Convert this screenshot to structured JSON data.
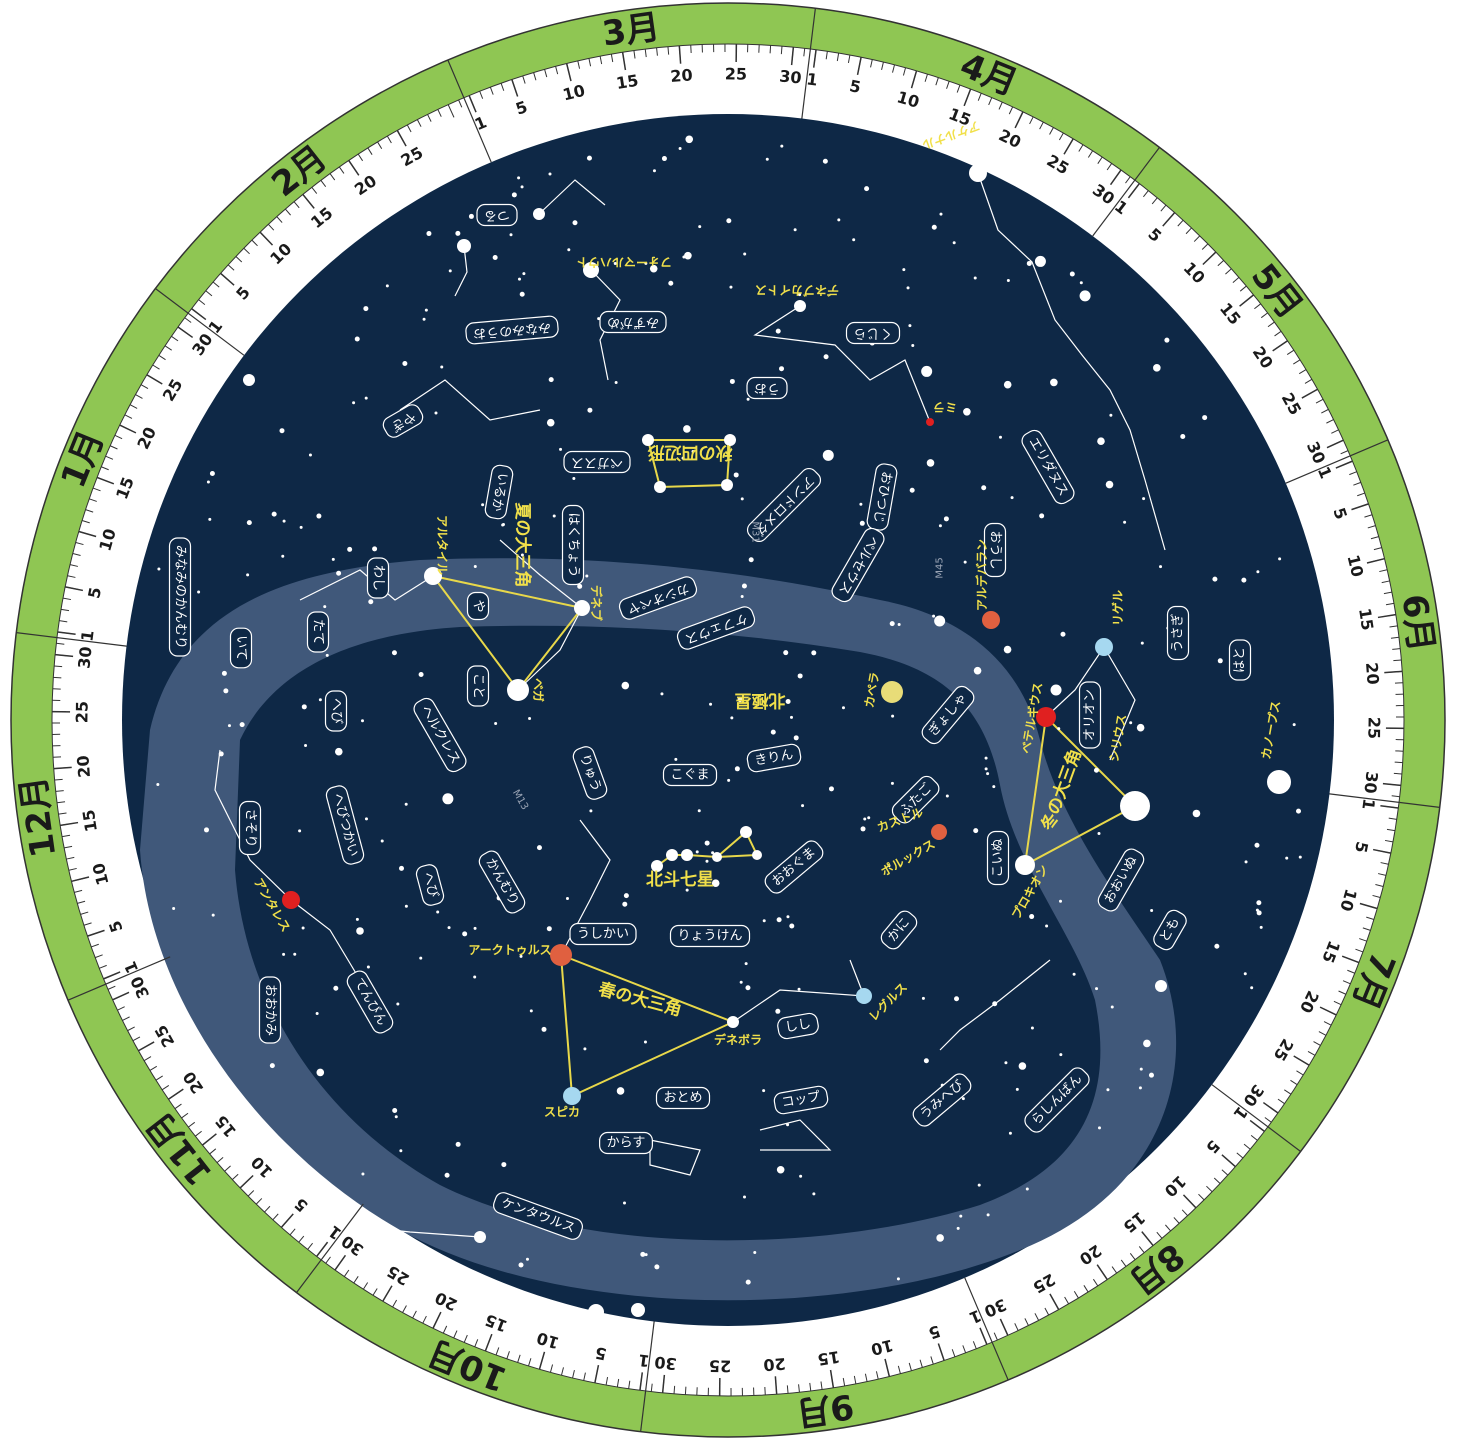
{
  "date_ring": {
    "months": [
      {
        "name": "3月",
        "days": [
          1,
          5,
          10,
          15,
          20,
          25,
          30
        ]
      },
      {
        "name": "4月",
        "days": [
          1,
          5,
          10,
          15,
          20,
          25,
          30
        ]
      },
      {
        "name": "5月",
        "days": [
          1,
          5,
          10,
          15,
          20,
          25,
          30
        ]
      },
      {
        "name": "6月",
        "days": [
          1,
          5,
          10,
          15,
          20,
          25,
          30
        ]
      },
      {
        "name": "7月",
        "days": [
          1,
          5,
          10,
          15,
          20,
          25,
          30
        ]
      },
      {
        "name": "8月",
        "days": [
          1,
          5,
          10,
          15,
          20,
          25,
          30
        ]
      },
      {
        "name": "9月",
        "days": [
          1,
          5,
          10,
          15,
          20,
          25,
          30
        ]
      },
      {
        "name": "10月",
        "days": [
          1,
          5,
          10,
          15,
          20,
          25,
          30
        ]
      },
      {
        "name": "11月",
        "days": [
          1,
          5,
          10,
          15,
          20,
          25,
          30
        ]
      },
      {
        "name": "12月",
        "days": [
          1,
          5,
          10,
          15,
          20,
          25,
          30
        ]
      },
      {
        "name": "1月",
        "days": [
          1,
          5,
          10,
          15,
          20,
          25,
          30
        ]
      },
      {
        "name": "2月",
        "days": [
          1,
          5,
          10,
          15,
          20,
          25
        ]
      }
    ]
  },
  "constellations": [
    "つる",
    "みなみのうお",
    "みずがめ",
    "くじら",
    "うお",
    "やぎ",
    "ペガスス",
    "いるか",
    "はくちょう",
    "アンドロメダ",
    "おひつじ",
    "エリダヌス",
    "ペルセウス",
    "おうし",
    "カシオペヤ",
    "ケフェウス",
    "みなみのかんむり",
    "いて",
    "たて",
    "わし",
    "や",
    "こと",
    "へび",
    "ヘルクレス",
    "へびつかい",
    "さそり",
    "へび",
    "かんむり",
    "りゅう",
    "こぐま",
    "きりん",
    "ぎょしゃ",
    "ふたご",
    "オリオン",
    "うさぎ",
    "はと",
    "こいぬ",
    "おおいぬ",
    "とも",
    "かに",
    "おおぐま",
    "りょうけん",
    "うしかい",
    "しし",
    "おとめ",
    "コップ",
    "うみへび",
    "らしんばん",
    "からす",
    "ケンタウルス",
    "てんびん",
    "おおかみ"
  ],
  "star_names": [
    "フォーマルハウト",
    "アケルナル",
    "デネブカイトス",
    "ミラ",
    "アルタイル",
    "デネブ",
    "ベガ",
    "カペラ",
    "アルデバラン",
    "リゲル",
    "ベテルギウス",
    "シリウス",
    "カノープス",
    "プロキオン",
    "カストル",
    "ポルックス",
    "アークトゥルス",
    "デネボラ",
    "レグルス",
    "スピカ",
    "アンタレス"
  ],
  "asterisms": [
    "秋の四辺形",
    "夏の大三角",
    "北極星",
    "冬の大三角",
    "北斗七星",
    "春の大三角"
  ],
  "objects": [
    "M31",
    "M45",
    "M13"
  ]
}
